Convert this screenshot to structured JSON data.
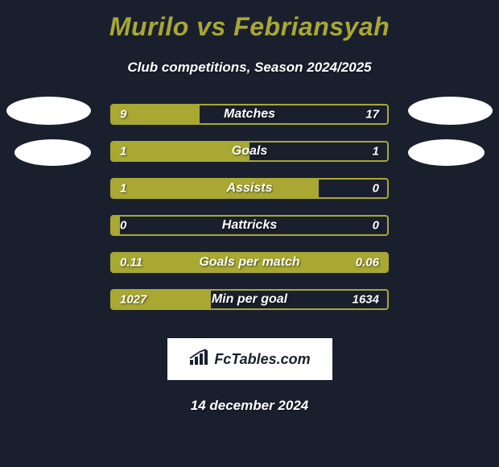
{
  "title": "Murilo vs Febriansyah",
  "subtitle": "Club competitions, Season 2024/2025",
  "colors": {
    "background": "#1a1f2e",
    "accent": "#a8a832",
    "text": "#ffffff",
    "logo_bg": "#ffffff",
    "logo_text": "#1a1f2e"
  },
  "stats": [
    {
      "label": "Matches",
      "left_value": "9",
      "right_value": "17",
      "left_pct": 32,
      "right_pct": 0
    },
    {
      "label": "Goals",
      "left_value": "1",
      "right_value": "1",
      "left_pct": 50,
      "right_pct": 0
    },
    {
      "label": "Assists",
      "left_value": "1",
      "right_value": "0",
      "left_pct": 75,
      "right_pct": 0
    },
    {
      "label": "Hattricks",
      "left_value": "0",
      "right_value": "0",
      "left_pct": 3,
      "right_pct": 0
    },
    {
      "label": "Goals per match",
      "left_value": "0.11",
      "right_value": "0.06",
      "left_pct": 100,
      "right_pct": 0
    },
    {
      "label": "Min per goal",
      "left_value": "1027",
      "right_value": "1634",
      "left_pct": 36,
      "right_pct": 0
    }
  ],
  "logo": {
    "text": "FcTables.com"
  },
  "date": "14 december 2024"
}
